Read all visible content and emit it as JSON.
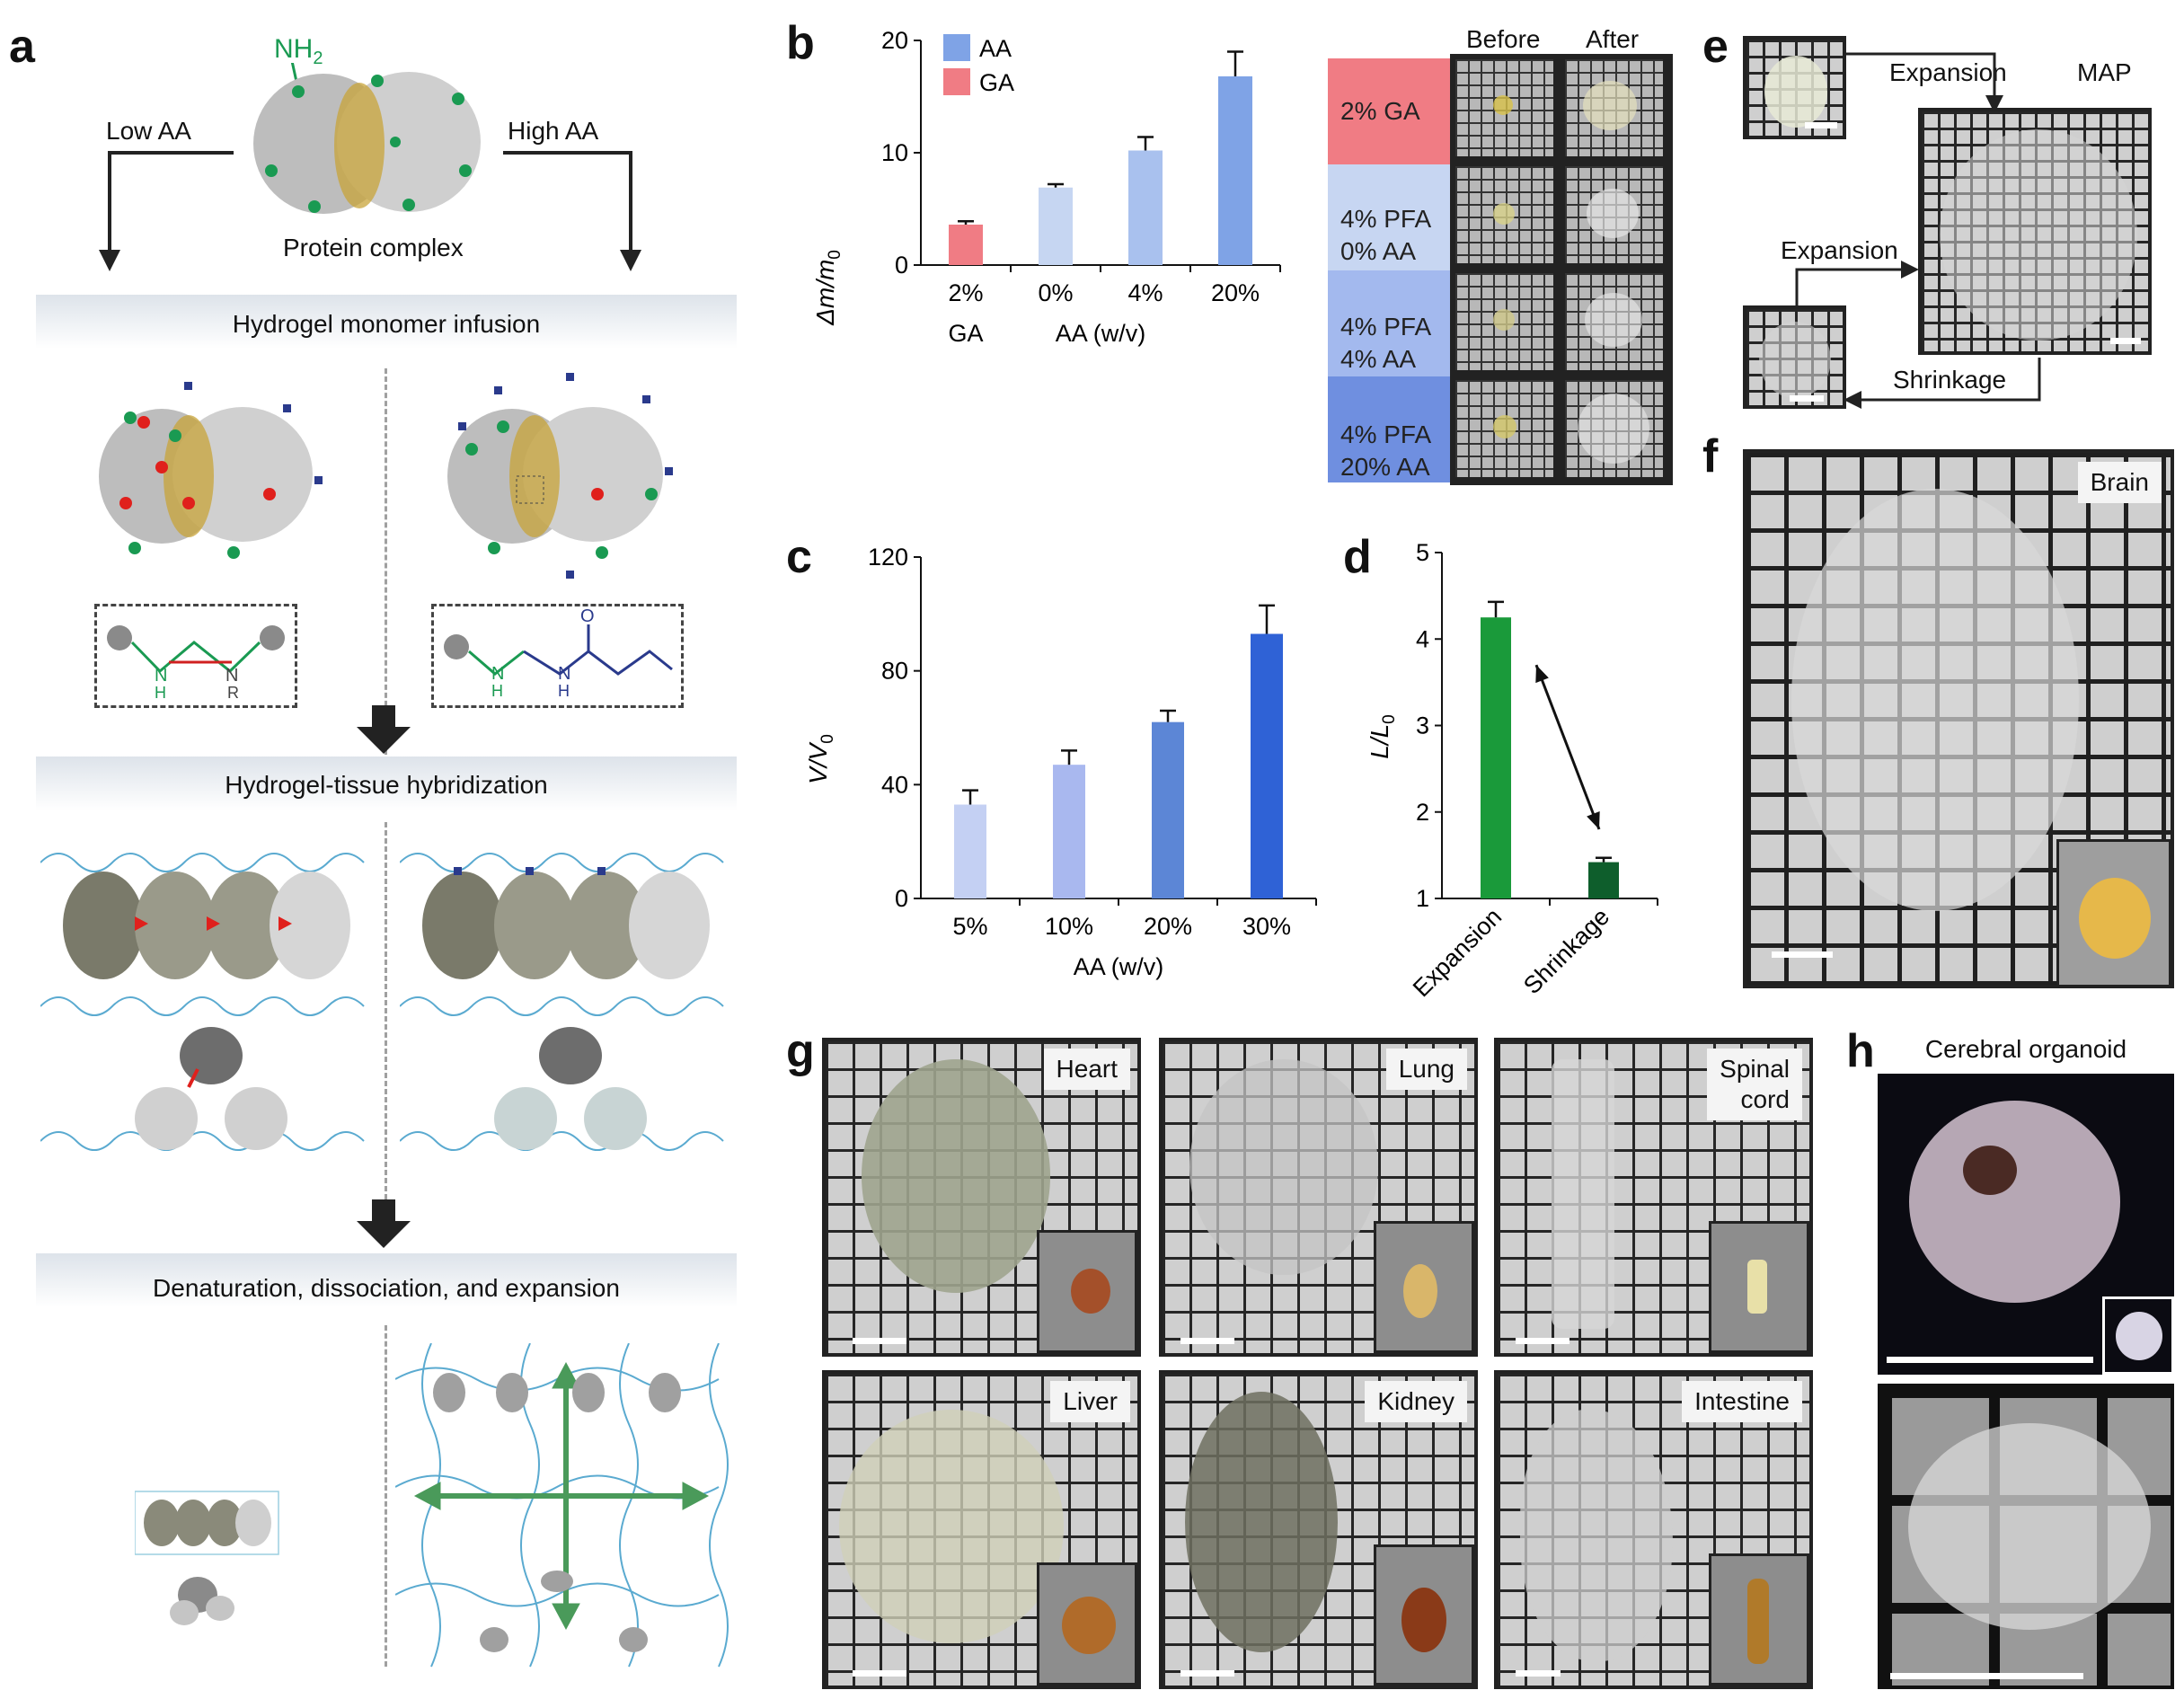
{
  "panel_letters": [
    "a",
    "b",
    "c",
    "d",
    "e",
    "f",
    "g",
    "h"
  ],
  "panel_a": {
    "nh2": "NH",
    "nh2_sub": "2",
    "low": "Low AA",
    "high": "High AA",
    "protein": "Protein complex",
    "step1": "Hydrogel monomer infusion",
    "step2": "Hydrogel-tissue hybridization",
    "step3": "Denaturation, dissociation, and expansion",
    "chem_left": [
      "N",
      "H",
      "N",
      "R"
    ],
    "chem_right": [
      "N",
      "H",
      "N",
      "H",
      "O"
    ]
  },
  "panel_b_images": {
    "col_before": "Before",
    "col_after": "After",
    "conditions": [
      {
        "line1": "2% GA",
        "line2": ""
      },
      {
        "line1": "4% PFA",
        "line2": "0% AA"
      },
      {
        "line1": "4% PFA",
        "line2": "4% AA"
      },
      {
        "line1": "4% PFA",
        "line2": "20% AA"
      }
    ]
  },
  "panel_e": {
    "expansion_top": "Expansion",
    "map": "MAP",
    "expansion_left": "Expansion",
    "shrinkage": "Shrinkage"
  },
  "panel_f": {
    "tissue": "Brain"
  },
  "panel_g": {
    "tissues": [
      "Heart",
      "Lung",
      "Spinal",
      "cord",
      "Liver",
      "Kidney",
      "Intestine"
    ]
  },
  "panel_h": {
    "title": "Cerebral organoid"
  },
  "colors": {
    "aa_blue": "#7fa3e6",
    "ga_red": "#f07c84",
    "green_expansion": "#1a9a3a",
    "green_shrinkage": "#0e5e2c"
  },
  "chart_data": [
    {
      "id": "b",
      "type": "bar",
      "ylabel": "Δm/m",
      "ylabel_sub": "0",
      "ylim": [
        0,
        20
      ],
      "yticks": [
        "0",
        "10",
        "20"
      ],
      "legend": [
        "AA",
        "GA"
      ],
      "categories": [
        "2%",
        "0%",
        "4%",
        "20%"
      ],
      "group_labels": [
        "GA",
        "AA (w/v)"
      ],
      "values": [
        3.6,
        6.9,
        10.2,
        16.8
      ],
      "errors": [
        0.3,
        0.3,
        1.2,
        2.2
      ],
      "colors": [
        "#f07c84",
        "#c6d6f2",
        "#a9c1ee",
        "#7fa3e6"
      ]
    },
    {
      "id": "c",
      "type": "bar",
      "ylabel": "V/V",
      "ylabel_sub": "0",
      "xlabel": "AA (w/v)",
      "ylim": [
        0,
        120
      ],
      "yticks": [
        "0",
        "40",
        "80",
        "120"
      ],
      "categories": [
        "5%",
        "10%",
        "20%",
        "30%"
      ],
      "values": [
        33,
        47,
        62,
        93
      ],
      "errors": [
        5,
        5,
        4,
        10
      ],
      "colors": [
        "#c4d0f3",
        "#a9b8ef",
        "#5c86d6",
        "#2f62d6"
      ]
    },
    {
      "id": "d",
      "type": "bar",
      "ylabel": "L/L",
      "ylabel_sub": "0",
      "ylim": [
        1,
        5
      ],
      "yticks": [
        "1",
        "2",
        "3",
        "4",
        "5"
      ],
      "categories": [
        "Expansion",
        "Shrinkage"
      ],
      "values": [
        4.25,
        1.42
      ],
      "errors": [
        0.18,
        0.05
      ],
      "colors": [
        "#1a9a3a",
        "#0e5e2c"
      ]
    }
  ]
}
